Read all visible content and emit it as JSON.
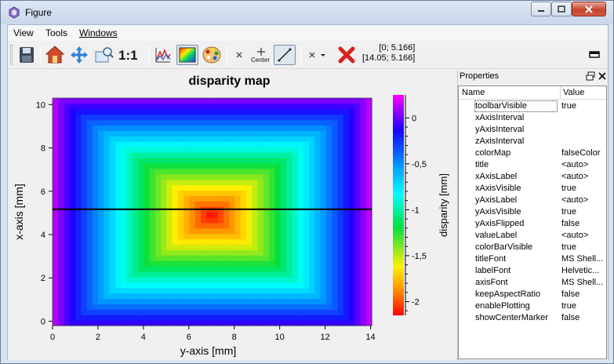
{
  "window": {
    "title": "Figure",
    "controls": {
      "minimize": "–",
      "maximize": "□",
      "close": "✕"
    }
  },
  "menu": [
    {
      "label": "View"
    },
    {
      "label": "Tools"
    },
    {
      "label": "Windows"
    }
  ],
  "toolbar": {
    "icons": [
      {
        "name": "save-icon"
      },
      {
        "name": "home-icon"
      },
      {
        "name": "pan-icon"
      },
      {
        "name": "zoom-to-rect-icon"
      },
      {
        "name": "aspect-ratio-icon"
      },
      {
        "name": "linecut-icon"
      },
      {
        "name": "colorbar-icon"
      },
      {
        "name": "palette-icon"
      },
      {
        "name": "marker-icon"
      },
      {
        "name": "center-marker-icon"
      },
      {
        "name": "draw-line-icon"
      },
      {
        "name": "point-picker-icon"
      },
      {
        "name": "delete-icon"
      },
      {
        "name": "dock-icon"
      }
    ],
    "aspect_label": "1:1",
    "center_label": "Center",
    "coords": [
      "[0; 5.166]",
      "[14.05; 5.166]"
    ]
  },
  "chart_data": {
    "type": "heatmap",
    "title": "disparity map",
    "xlabel": "y-axis [mm]",
    "ylabel": "x-axis [mm]",
    "x_ticks": [
      "0",
      "2",
      "4",
      "6",
      "8",
      "10",
      "12",
      "14"
    ],
    "y_ticks": [
      "0",
      "2",
      "4",
      "6",
      "8",
      "10"
    ],
    "xlim": [
      0,
      14.05
    ],
    "ylim": [
      -0.2,
      10.3
    ],
    "colorbar": {
      "label": "disparity [mm]",
      "ticks": [
        "0",
        "-0,5",
        "-1",
        "-1,5",
        "-2"
      ],
      "tick_values": [
        0,
        -0.5,
        -1,
        -1.5,
        -2
      ],
      "range": [
        -2.15,
        0.25
      ],
      "colormap": "falseColor"
    },
    "line_cut": {
      "x": [
        0,
        14.05
      ],
      "y": [
        5.166,
        5.166
      ]
    },
    "minimum_at": {
      "y_axis_mm": 7.0,
      "x_axis_mm": 4.9
    }
  },
  "properties": {
    "panel_title": "Properties",
    "columns": [
      "Name",
      "Value"
    ],
    "rows": [
      {
        "name": "toolbarVisible",
        "value": "true"
      },
      {
        "name": "xAxisInterval",
        "value": ""
      },
      {
        "name": "yAxisInterval",
        "value": ""
      },
      {
        "name": "zAxisInterval",
        "value": ""
      },
      {
        "name": "colorMap",
        "value": "falseColor"
      },
      {
        "name": "title",
        "value": "<auto>"
      },
      {
        "name": "xAxisLabel",
        "value": "<auto>"
      },
      {
        "name": "xAxisVisible",
        "value": "true"
      },
      {
        "name": "yAxisLabel",
        "value": "<auto>"
      },
      {
        "name": "yAxisVisible",
        "value": "true"
      },
      {
        "name": "yAxisFlipped",
        "value": "false"
      },
      {
        "name": "valueLabel",
        "value": "<auto>"
      },
      {
        "name": "colorBarVisible",
        "value": "true"
      },
      {
        "name": "titleFont",
        "value": "MS Shell..."
      },
      {
        "name": "labelFont",
        "value": "Helvetic..."
      },
      {
        "name": "axisFont",
        "value": "MS Shell..."
      },
      {
        "name": "keepAspectRatio",
        "value": "false"
      },
      {
        "name": "enablePlotting",
        "value": "true"
      },
      {
        "name": "showCenterMarker",
        "value": "false"
      }
    ]
  }
}
